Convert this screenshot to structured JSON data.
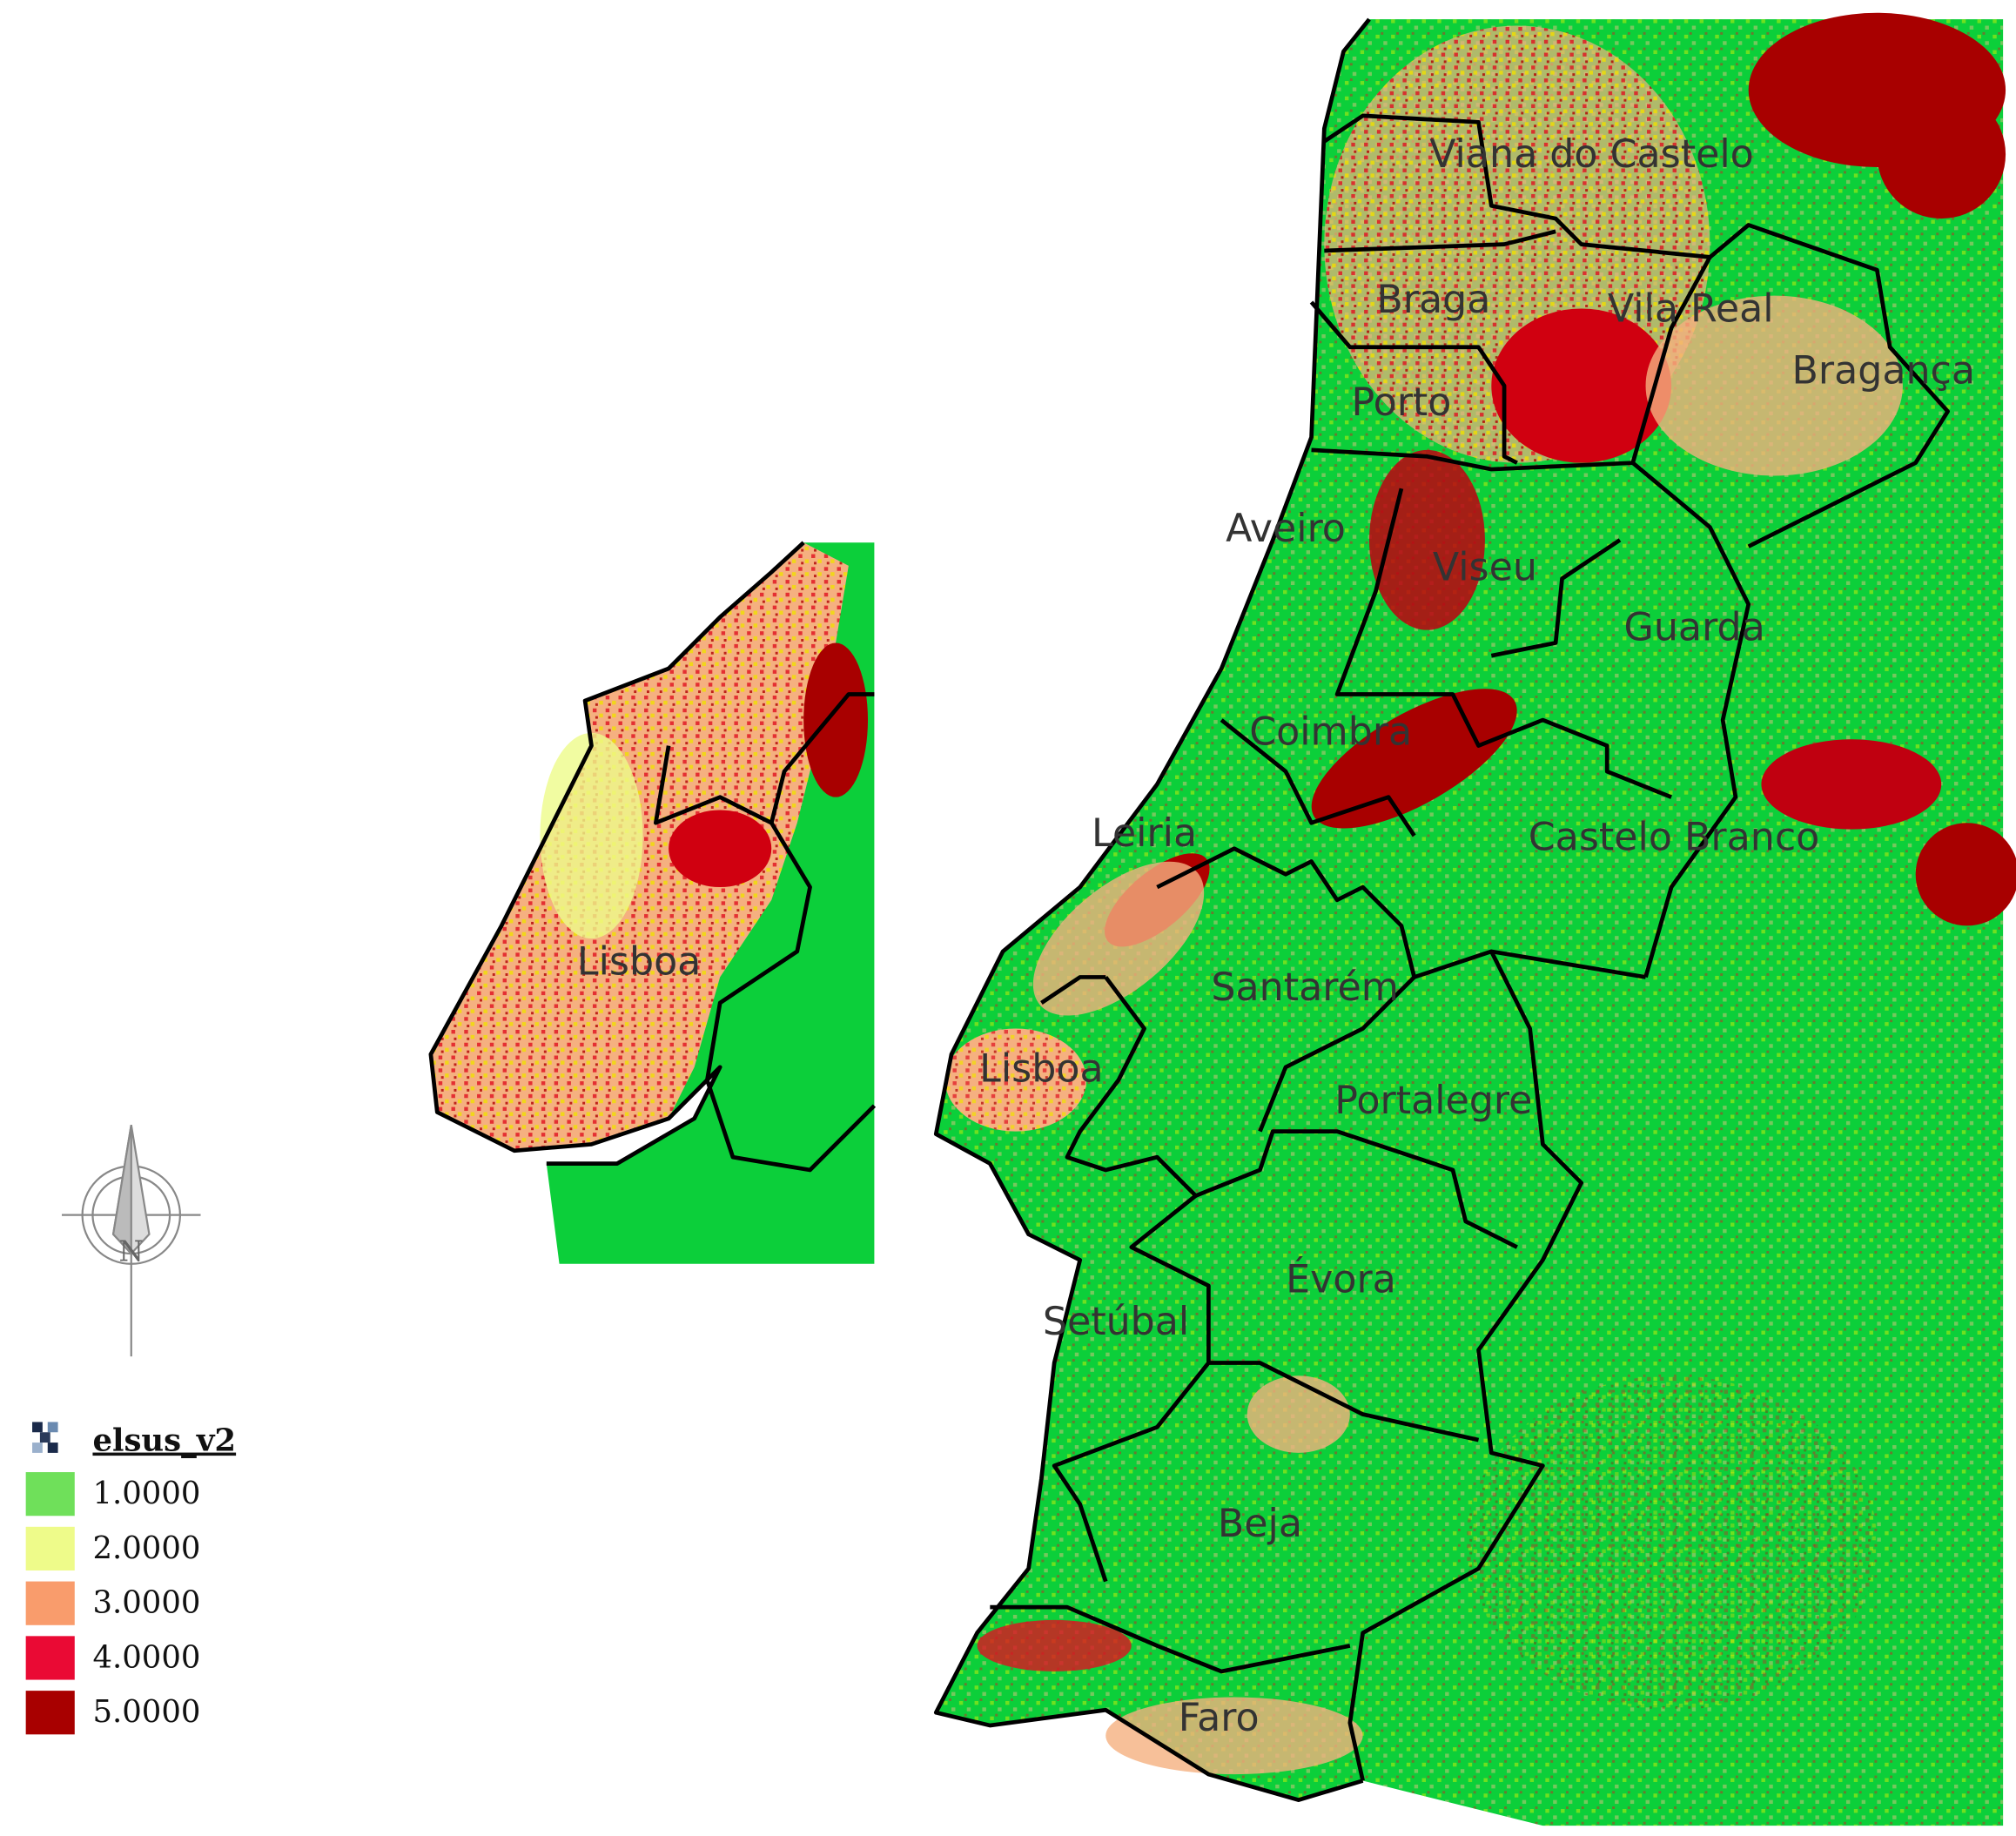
{
  "map": {
    "district_labels": [
      "Viana do Castelo",
      "Braga",
      "Vila Real",
      "Bragança",
      "Porto",
      "Aveiro",
      "Viseu",
      "Guarda",
      "Coimbra",
      "Leiria",
      "Castelo Branco",
      "Santarém",
      "Lisboa",
      "Portalegre",
      "Évora",
      "Setúbal",
      "Beja",
      "Faro"
    ],
    "inset_label": "Lisboa",
    "north_arrow": "N",
    "legend": {
      "title": "elsus_v2",
      "items": [
        {
          "label": "1.0000",
          "color": "#6fe05a"
        },
        {
          "label": "2.0000",
          "color": "#eefb8a"
        },
        {
          "label": "3.0000",
          "color": "#f99c6c"
        },
        {
          "label": "4.0000",
          "color": "#ea0a34"
        },
        {
          "label": "5.0000",
          "color": "#a80000"
        }
      ]
    }
  }
}
